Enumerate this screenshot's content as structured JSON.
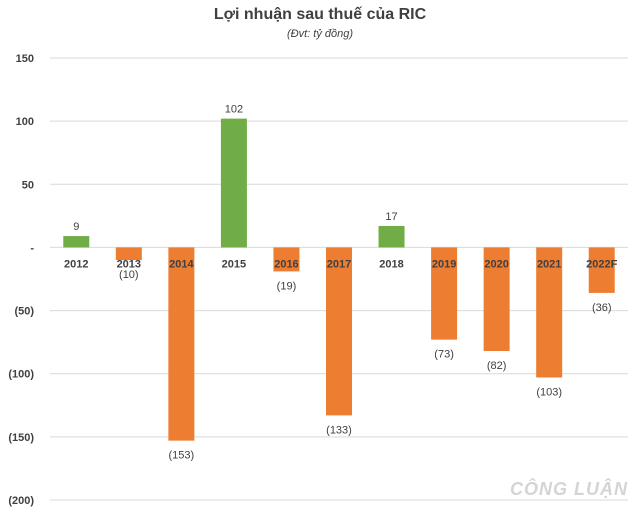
{
  "chart_data": {
    "type": "bar",
    "title": "Lợi nhuận sau thuế của RIC",
    "subtitle": "(Đvt: tỷ đồng)",
    "categories": [
      "2012",
      "2013",
      "2014",
      "2015",
      "2016",
      "2017",
      "2018",
      "2019",
      "2020",
      "2021",
      "2022F"
    ],
    "values": [
      9,
      -10,
      -153,
      102,
      -19,
      -133,
      17,
      -73,
      -82,
      -103,
      -36
    ],
    "data_labels": [
      "9",
      "(10)",
      "(153)",
      "102",
      "(19)",
      "(133)",
      "17",
      "(73)",
      "(82)",
      "(103)",
      "(36)"
    ],
    "ylim": [
      -200,
      150
    ],
    "yticks": [
      150,
      100,
      50,
      0,
      -50,
      -100,
      -150,
      -200
    ],
    "ytick_labels": [
      "150",
      "100",
      "50",
      "-",
      "(50)",
      "(100)",
      "(150)",
      "(200)"
    ],
    "grid": true,
    "colors": {
      "positive": "#70ad47",
      "negative": "#ed7d31",
      "grid": "#d9d9d9"
    }
  },
  "watermark": "CÔNG LUẬN"
}
